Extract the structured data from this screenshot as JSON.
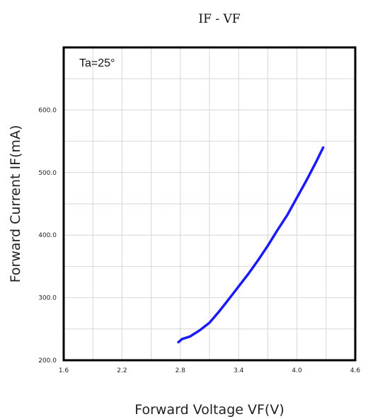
{
  "chart_data": {
    "type": "line",
    "title": "IF - VF",
    "xlabel": "Forward Voltage VF(V)",
    "ylabel": "Forward Current IF(mA)",
    "annotation": "Ta=25°",
    "xlim": [
      1.6,
      4.6
    ],
    "ylim": [
      200,
      700
    ],
    "xticks": [
      1.6,
      2.2,
      2.8,
      3.4,
      4.0,
      4.6
    ],
    "xtick_labels": [
      "1.6",
      "2.2",
      "2.8",
      "3.4",
      "4.0",
      "4.6"
    ],
    "yticks": [
      200,
      300,
      400,
      500,
      600
    ],
    "ytick_labels": [
      "200.0",
      "300.0",
      "400.0",
      "500.0",
      "600.0"
    ],
    "grid": true,
    "series": [
      {
        "color": "#1a1aff",
        "x": [
          2.78,
          2.82,
          2.9,
          3.0,
          3.1,
          3.2,
          3.3,
          3.4,
          3.5,
          3.6,
          3.7,
          3.8,
          3.9,
          4.0,
          4.1,
          4.2,
          4.27
        ],
        "y": [
          229,
          234,
          238,
          248,
          260,
          278,
          298,
          318,
          338,
          360,
          383,
          408,
          432,
          460,
          488,
          518,
          540
        ]
      }
    ]
  }
}
